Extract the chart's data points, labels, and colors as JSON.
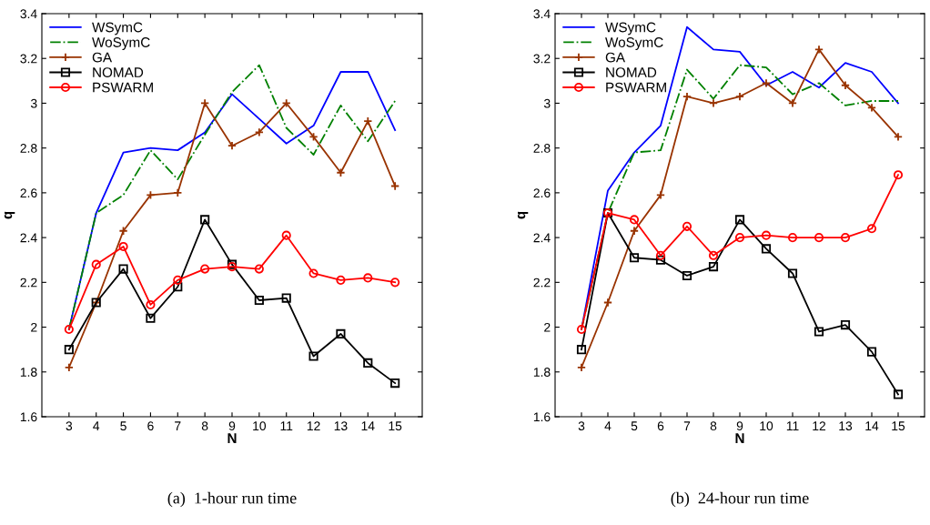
{
  "chart_data": [
    {
      "type": "line",
      "xlabel": "N",
      "ylabel": "q",
      "x": [
        3,
        4,
        5,
        6,
        7,
        8,
        9,
        10,
        11,
        12,
        13,
        14,
        15
      ],
      "xlim": [
        2,
        16
      ],
      "xticks": [
        3,
        4,
        5,
        6,
        7,
        8,
        9,
        10,
        11,
        12,
        13,
        14,
        15
      ],
      "ylim": [
        1.6,
        3.4
      ],
      "yticks": [
        1.6,
        1.8,
        2,
        2.2,
        2.4,
        2.6,
        2.8,
        3,
        3.2,
        3.4
      ],
      "grid": false,
      "legend": "top left",
      "annotations": [
        "(a)  1-hour run time"
      ],
      "series": [
        {
          "name": "WSymC",
          "color": "#0000ff",
          "marker": "none",
          "line_style": "solid",
          "values": [
            1.99,
            2.51,
            2.78,
            2.8,
            2.79,
            2.87,
            3.04,
            2.93,
            2.82,
            2.9,
            3.14,
            3.14,
            2.88
          ]
        },
        {
          "name": "WoSymC",
          "color": "#008000",
          "marker": "none",
          "line_style": "dashdot",
          "values": [
            1.99,
            2.51,
            2.59,
            2.79,
            2.66,
            2.86,
            3.05,
            3.17,
            2.89,
            2.77,
            2.99,
            2.83,
            3.01
          ]
        },
        {
          "name": "GA",
          "color": "#993300",
          "marker": "cross",
          "line_style": "solid",
          "values": [
            1.82,
            2.11,
            2.43,
            2.59,
            2.6,
            3.0,
            2.81,
            2.87,
            3.0,
            2.85,
            2.69,
            2.92,
            2.63
          ]
        },
        {
          "name": "NOMAD",
          "color": "#000000",
          "marker": "square",
          "line_style": "solid",
          "values": [
            1.9,
            2.11,
            2.26,
            2.04,
            2.18,
            2.48,
            2.28,
            2.12,
            2.13,
            1.87,
            1.97,
            1.84,
            1.75
          ]
        },
        {
          "name": "PSWARM",
          "color": "#ff0000",
          "marker": "circle",
          "line_style": "solid",
          "values": [
            1.99,
            2.28,
            2.36,
            2.1,
            2.21,
            2.26,
            2.27,
            2.26,
            2.41,
            2.24,
            2.21,
            2.22,
            2.2
          ]
        }
      ]
    },
    {
      "type": "line",
      "xlabel": "N",
      "ylabel": "q",
      "x": [
        3,
        4,
        5,
        6,
        7,
        8,
        9,
        10,
        11,
        12,
        13,
        14,
        15
      ],
      "xlim": [
        2,
        16
      ],
      "xticks": [
        3,
        4,
        5,
        6,
        7,
        8,
        9,
        10,
        11,
        12,
        13,
        14,
        15
      ],
      "ylim": [
        1.6,
        3.4
      ],
      "yticks": [
        1.6,
        1.8,
        2,
        2.2,
        2.4,
        2.6,
        2.8,
        3,
        3.2,
        3.4
      ],
      "grid": false,
      "legend": "top left",
      "annotations": [
        "(b)  24-hour run time"
      ],
      "series": [
        {
          "name": "WSymC",
          "color": "#0000ff",
          "marker": "none",
          "line_style": "solid",
          "values": [
            1.99,
            2.61,
            2.78,
            2.9,
            3.34,
            3.24,
            3.23,
            3.08,
            3.14,
            3.07,
            3.18,
            3.14,
            3.0
          ]
        },
        {
          "name": "WoSymC",
          "color": "#008000",
          "marker": "none",
          "line_style": "dashdot",
          "values": [
            1.99,
            2.51,
            2.78,
            2.79,
            3.15,
            3.02,
            3.17,
            3.16,
            3.04,
            3.09,
            2.99,
            3.01,
            3.01
          ]
        },
        {
          "name": "GA",
          "color": "#993300",
          "marker": "cross",
          "line_style": "solid",
          "values": [
            1.82,
            2.11,
            2.43,
            2.59,
            3.03,
            3.0,
            3.03,
            3.09,
            3.0,
            3.24,
            3.08,
            2.98,
            2.85
          ]
        },
        {
          "name": "NOMAD",
          "color": "#000000",
          "marker": "square",
          "line_style": "solid",
          "values": [
            1.9,
            2.51,
            2.31,
            2.3,
            2.23,
            2.27,
            2.48,
            2.35,
            2.24,
            1.98,
            2.01,
            1.89,
            1.7
          ]
        },
        {
          "name": "PSWARM",
          "color": "#ff0000",
          "marker": "circle",
          "line_style": "solid",
          "values": [
            1.99,
            2.51,
            2.48,
            2.32,
            2.45,
            2.32,
            2.4,
            2.41,
            2.4,
            2.4,
            2.4,
            2.44,
            2.68
          ]
        }
      ]
    }
  ]
}
